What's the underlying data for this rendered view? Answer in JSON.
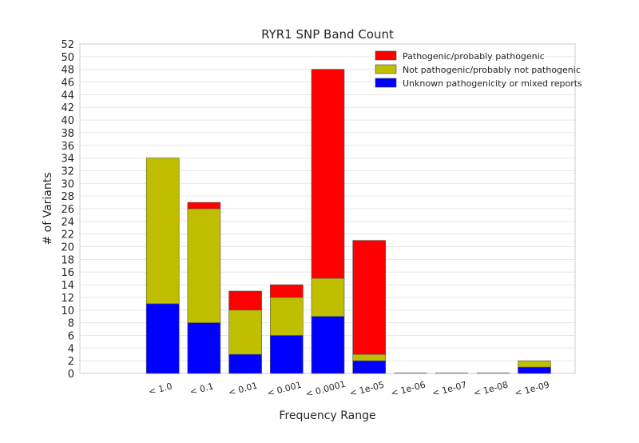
{
  "chart_data": {
    "type": "bar",
    "stacked": true,
    "title": "RYR1 SNP Band Count",
    "xlabel": "Frequency Range",
    "ylabel": "# of Variants",
    "categories": [
      "",
      "< 1.0",
      "< 0.1",
      "< 0.01",
      "< 0.001",
      "< 0.0001",
      "< 1e-05",
      "< 1e-06",
      "< 1e-07",
      "< 1e-08",
      "< 1e-09"
    ],
    "ylim": [
      0,
      52
    ],
    "yticks": [
      0,
      2,
      4,
      6,
      8,
      10,
      12,
      14,
      16,
      18,
      20,
      22,
      24,
      26,
      28,
      30,
      32,
      34,
      36,
      38,
      40,
      42,
      44,
      46,
      48,
      50,
      52
    ],
    "grid": true,
    "legend_position": "top-right",
    "series": [
      {
        "name": "Unknown pathogenicity or mixed reports",
        "color": "#0000ff",
        "values": [
          0,
          11,
          8,
          3,
          6,
          9,
          2,
          0,
          0,
          0,
          1
        ]
      },
      {
        "name": "Not pathogenic/probably not pathogenic",
        "color": "#bfbf00",
        "values": [
          0,
          23,
          18,
          7,
          6,
          6,
          1,
          0,
          0,
          0,
          1
        ]
      },
      {
        "name": "Pathogenic/probably pathogenic",
        "color": "#ff0000",
        "values": [
          0,
          0,
          1,
          3,
          2,
          33,
          18,
          0,
          0,
          0,
          0
        ]
      }
    ],
    "legend_order": [
      "Pathogenic/probably pathogenic",
      "Not pathogenic/probably not pathogenic",
      "Unknown pathogenicity or mixed reports"
    ]
  }
}
